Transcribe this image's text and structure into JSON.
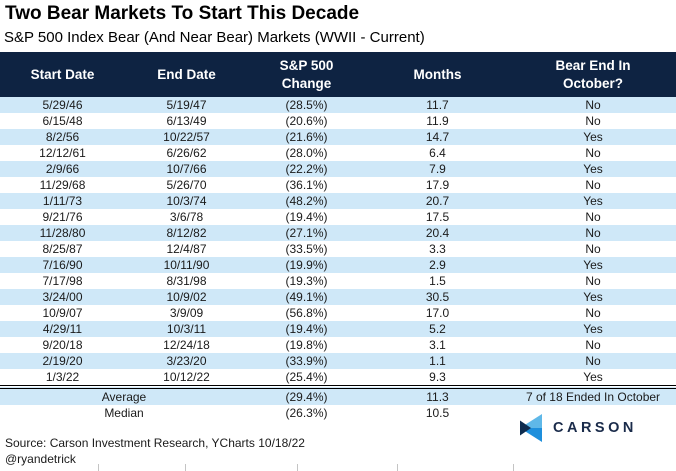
{
  "title": "Two Bear Markets To Start This Decade",
  "subtitle": "S&P 500 Index Bear (And Near Bear) Markets (WWII - Current)",
  "chart_data": {
    "type": "table",
    "title": "Two Bear Markets To Start This Decade",
    "subtitle": "S&P 500 Index Bear (And Near Bear) Markets (WWII - Current)",
    "columns": [
      "Start Date",
      "End Date",
      "S&P 500\nChange",
      "Months",
      "Bear End In\nOctober?"
    ],
    "rows": [
      [
        "5/29/46",
        "5/19/47",
        "(28.5%)",
        "11.7",
        "No"
      ],
      [
        "6/15/48",
        "6/13/49",
        "(20.6%)",
        "11.9",
        "No"
      ],
      [
        "8/2/56",
        "10/22/57",
        "(21.6%)",
        "14.7",
        "Yes"
      ],
      [
        "12/12/61",
        "6/26/62",
        "(28.0%)",
        "6.4",
        "No"
      ],
      [
        "2/9/66",
        "10/7/66",
        "(22.2%)",
        "7.9",
        "Yes"
      ],
      [
        "11/29/68",
        "5/26/70",
        "(36.1%)",
        "17.9",
        "No"
      ],
      [
        "1/11/73",
        "10/3/74",
        "(48.2%)",
        "20.7",
        "Yes"
      ],
      [
        "9/21/76",
        "3/6/78",
        "(19.4%)",
        "17.5",
        "No"
      ],
      [
        "11/28/80",
        "8/12/82",
        "(27.1%)",
        "20.4",
        "No"
      ],
      [
        "8/25/87",
        "12/4/87",
        "(33.5%)",
        "3.3",
        "No"
      ],
      [
        "7/16/90",
        "10/11/90",
        "(19.9%)",
        "2.9",
        "Yes"
      ],
      [
        "7/17/98",
        "8/31/98",
        "(19.3%)",
        "1.5",
        "No"
      ],
      [
        "3/24/00",
        "10/9/02",
        "(49.1%)",
        "30.5",
        "Yes"
      ],
      [
        "10/9/07",
        "3/9/09",
        "(56.8%)",
        "17.0",
        "No"
      ],
      [
        "4/29/11",
        "10/3/11",
        "(19.4%)",
        "5.2",
        "Yes"
      ],
      [
        "9/20/18",
        "12/24/18",
        "(19.8%)",
        "3.1",
        "No"
      ],
      [
        "2/19/20",
        "3/23/20",
        "(33.9%)",
        "1.1",
        "No"
      ],
      [
        "1/3/22",
        "10/12/22",
        "(25.4%)",
        "9.3",
        "Yes"
      ]
    ],
    "summary_rows": [
      {
        "label": "Average",
        "change": "(29.4%)",
        "months": "11.3",
        "note": "7 of 18 Ended In October"
      },
      {
        "label": "Median",
        "change": "(26.3%)",
        "months": "10.5",
        "note": ""
      }
    ]
  },
  "footer": {
    "source": "Source: Carson Investment Research, YCharts 10/18/22",
    "handle": "@ryandetrick",
    "logo_text": "CARSON"
  },
  "colors": {
    "header_bg": "#0E2342",
    "row_stripe": "#CFE8F8",
    "negative_red": "#C00000",
    "logo_light_blue": "#5FB8E8",
    "logo_mid_blue": "#1E8FDC",
    "logo_dark_navy": "#0D2B4E"
  }
}
